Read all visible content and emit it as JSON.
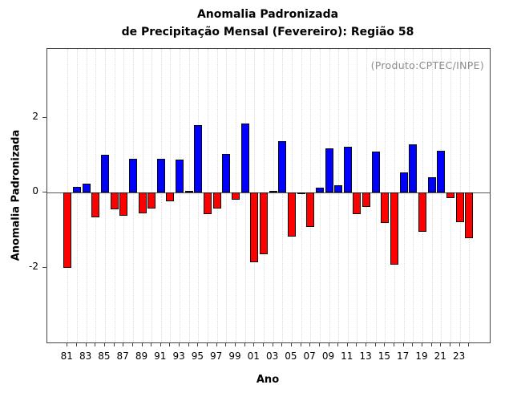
{
  "title": {
    "line1": "Anomalia Padronizada",
    "line2": "de Precipitação Mensal (Fevereiro): Região 58"
  },
  "annotation": "(Produto:CPTEC/INPE)",
  "xlabel": "Ano",
  "ylabel": "Anomalia Padronizada",
  "chart_data": {
    "type": "bar",
    "title": "Anomalia Padronizada de Precipitação Mensal (Fevereiro): Região 58",
    "xlabel": "Ano",
    "ylabel": "Anomalia Padronizada",
    "x": [
      1981,
      1982,
      1983,
      1984,
      1985,
      1986,
      1987,
      1988,
      1989,
      1990,
      1991,
      1992,
      1993,
      1994,
      1995,
      1996,
      1997,
      1998,
      1999,
      2000,
      2001,
      2002,
      2003,
      2004,
      2005,
      2006,
      2007,
      2008,
      2009,
      2010,
      2011,
      2012,
      2013,
      2014,
      2015,
      2016,
      2017,
      2018,
      2019,
      2020,
      2021,
      2022,
      2023,
      2024
    ],
    "values": [
      -2.0,
      0.15,
      0.25,
      -0.66,
      1.01,
      -0.44,
      -0.62,
      0.91,
      -0.56,
      -0.43,
      0.9,
      -0.22,
      0.88,
      0.03,
      1.81,
      -0.57,
      -0.43,
      1.03,
      -0.19,
      1.86,
      -1.86,
      -1.64,
      0.05,
      1.37,
      -1.18,
      -0.02,
      -0.92,
      0.14,
      1.18,
      0.21,
      1.22,
      -0.57,
      -0.39,
      1.1,
      -0.81,
      -1.93,
      0.55,
      1.29,
      -1.05,
      0.41,
      1.12,
      -0.15,
      -0.79,
      -1.21
    ],
    "xtick_labels": [
      "81",
      "83",
      "85",
      "87",
      "89",
      "91",
      "93",
      "95",
      "97",
      "99",
      "01",
      "03",
      "05",
      "07",
      "09",
      "11",
      "13",
      "15",
      "17",
      "19",
      "21",
      "23"
    ],
    "yticks": [
      2,
      0,
      -2
    ],
    "ytick_labels": [
      "2",
      "0",
      "-2"
    ],
    "ylim": [
      -4.0,
      3.85
    ],
    "grid": "vertical-dotted",
    "legend": "none",
    "positive_color": "#0000ff",
    "negative_color": "#ff0000",
    "bar_border_color": "#0a0a0a",
    "annotation": "(Produto:CPTEC/INPE)"
  }
}
